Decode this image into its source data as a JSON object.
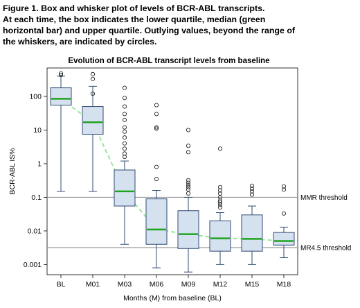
{
  "caption": {
    "line1": "Figure 1. Box and whisker plot of levels of BCR-ABL transcripts.",
    "line2": "At each time, the box indicates the lower quartile, median (green",
    "line3": "horizontal bar) and upper quartile.  Outlying values, beyond the range of",
    "line4": "the whiskers, are indicated by circles."
  },
  "colors": {
    "box_fill": "#d6e1f0",
    "box_stroke": "#2f4a73",
    "median": "#1ea31e",
    "trend": "#9be69b",
    "ref_line": "#8c8c8c",
    "outlier": "#222222"
  },
  "chart_data": {
    "type": "box",
    "title": "Evolution of BCR-ABL transcript levels from baseline",
    "xlabel": "Months (M) from baseline (BL)",
    "ylabel": "BCR-ABL IS%",
    "yscale": "log",
    "ylim": [
      0.0005,
      700
    ],
    "yticks": [
      100,
      10,
      1,
      0.1,
      0.01,
      0.001
    ],
    "ytick_labels": [
      "100",
      "10",
      "1",
      "0.1",
      "0.01",
      "0.001"
    ],
    "categories": [
      "BL",
      "M01",
      "M03",
      "M06",
      "M09",
      "M12",
      "M15",
      "M18"
    ],
    "boxes": [
      {
        "label": "BL",
        "whisker_low": 0.15,
        "q1": 55,
        "median": 85,
        "q3": 180,
        "whisker_high": 400,
        "outliers": [
          430,
          480
        ]
      },
      {
        "label": "M01",
        "whisker_low": 0.15,
        "q1": 7.5,
        "median": 17,
        "q3": 50,
        "whisker_high": 200,
        "outliers": [
          120,
          330,
          460
        ]
      },
      {
        "label": "M03",
        "whisker_low": 0.004,
        "q1": 0.055,
        "median": 0.15,
        "q3": 0.65,
        "whisker_high": 1.2,
        "outliers": [
          1.6,
          2,
          2.8,
          4,
          6,
          9,
          12,
          20,
          30,
          50,
          90,
          180
        ]
      },
      {
        "label": "M06",
        "whisker_low": 0.0008,
        "q1": 0.004,
        "median": 0.011,
        "q3": 0.09,
        "whisker_high": 0.16,
        "outliers": [
          0.35,
          0.8,
          11,
          12,
          30,
          55
        ]
      },
      {
        "label": "M09",
        "whisker_low": 0.0006,
        "q1": 0.003,
        "median": 0.008,
        "q3": 0.04,
        "whisker_high": 0.1,
        "outliers": [
          0.13,
          0.17,
          0.2,
          0.23,
          0.27,
          0.32,
          2.2,
          3.4,
          10
        ]
      },
      {
        "label": "M12",
        "whisker_low": 0.001,
        "q1": 0.0025,
        "median": 0.006,
        "q3": 0.02,
        "whisker_high": 0.035,
        "outliers": [
          0.05,
          0.06,
          0.07,
          0.08,
          0.1,
          0.13,
          0.16,
          0.2,
          2.8
        ]
      },
      {
        "label": "M15",
        "whisker_low": 0.001,
        "q1": 0.0025,
        "median": 0.0058,
        "q3": 0.03,
        "whisker_high": 0.055,
        "outliers": [
          0.12,
          0.15,
          0.18,
          0.22
        ]
      },
      {
        "label": "M18",
        "whisker_low": 0.0016,
        "q1": 0.0038,
        "median": 0.005,
        "q3": 0.009,
        "whisker_high": 0.013,
        "outliers": [
          0.033,
          0.17,
          0.21
        ]
      }
    ],
    "reference_lines": [
      {
        "label": "MMR threshold",
        "y": 0.1
      },
      {
        "label": "MR4.5 threshold",
        "y": 0.0032
      }
    ],
    "trend": "dashed line through medians",
    "grid": false,
    "legend": "none"
  }
}
